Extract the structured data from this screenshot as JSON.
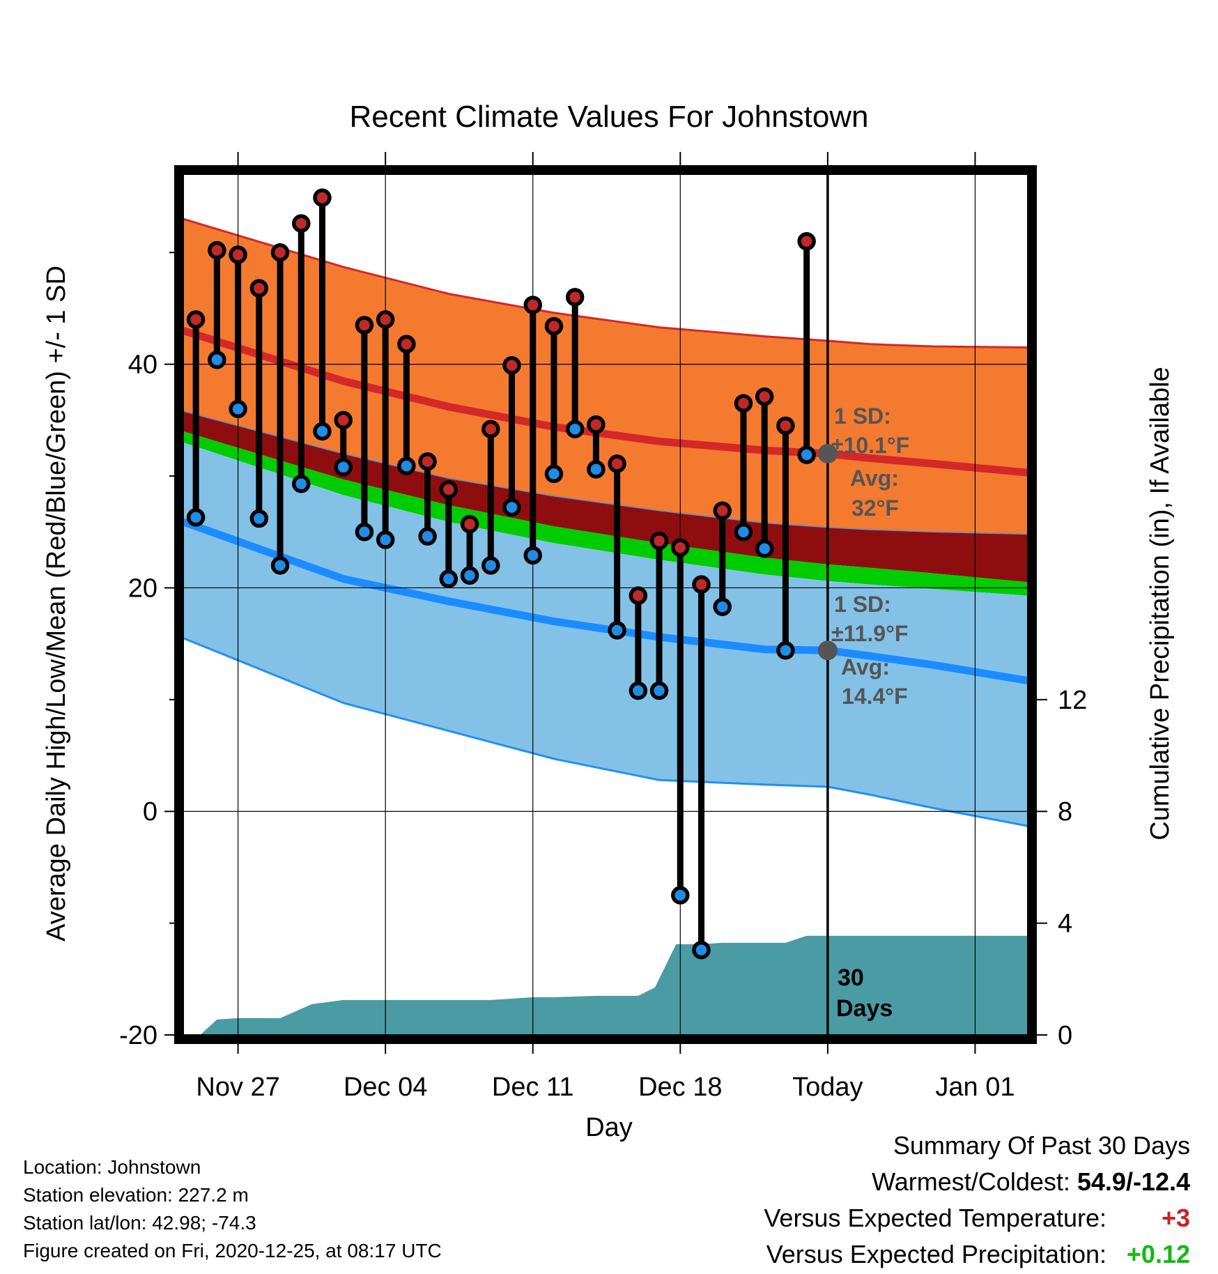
{
  "chart_data": {
    "type": "line",
    "title": "Recent Climate Values For Johnstown",
    "xlabel": "Day",
    "ylabel_left": "Average Daily High/Low/Mean (Red/Blue/Green) +/- 1 SD",
    "ylabel_right": "Cumulative Precipitation (in), If Available",
    "x_ticks": [
      "Nov 27",
      "Dec 04",
      "Dec 11",
      "Dec 18",
      "Today",
      "Jan 01"
    ],
    "x_tick_days": [
      0,
      7,
      14,
      21,
      28,
      35
    ],
    "xlim_days": [
      -2.6,
      37.5
    ],
    "ylim": [
      -20,
      57
    ],
    "y_ticks": [
      -20,
      0,
      20,
      40
    ],
    "y_minor_ticks": [
      -10,
      10,
      30,
      50
    ],
    "precip_ticks": [
      0,
      4,
      8,
      12
    ],
    "precip_lim": [
      0,
      30.8
    ],
    "grid": true,
    "colors": {
      "high_band": "#f47a30",
      "high_line": "#d42828",
      "low_band": "#84c1e7",
      "low_line": "#1a8cff",
      "low_band_edge": "#2090f0",
      "mean_band": "#8e0e10",
      "mean_line": "#00cc00",
      "precip": "#4a9ba3",
      "high_dot": "#c0282a",
      "low_dot": "#1f8ce6",
      "avg_dot": "#555555"
    },
    "normal_days": [
      -2.6,
      5,
      10,
      15,
      20,
      25,
      28,
      30,
      33,
      37.5
    ],
    "normal_high_upper": [
      53.0,
      48.7,
      46.3,
      44.6,
      43.3,
      42.5,
      42.1,
      41.8,
      41.6,
      41.5
    ],
    "normal_high_avg": [
      43.0,
      38.5,
      36.2,
      34.4,
      33.1,
      32.3,
      32.0,
      31.6,
      31.1,
      30.3
    ],
    "normal_mean_upper": [
      35.8,
      32.0,
      29.8,
      28.2,
      26.9,
      25.8,
      25.4,
      25.2,
      25.0,
      24.8
    ],
    "normal_mean_avg": [
      34.0,
      29.7,
      27.4,
      25.5,
      24.0,
      22.7,
      22.1,
      21.8,
      21.3,
      20.5
    ],
    "normal_low_upper": [
      33.0,
      28.3,
      25.9,
      24.0,
      22.5,
      21.2,
      20.6,
      20.3,
      19.9,
      19.3
    ],
    "normal_low_avg": [
      25.9,
      20.8,
      18.8,
      17.0,
      15.6,
      14.5,
      14.4,
      13.9,
      13.1,
      11.7
    ],
    "normal_low_lower": [
      15.5,
      9.7,
      7.2,
      4.7,
      2.8,
      2.4,
      2.2,
      1.5,
      0.3,
      -1.3
    ],
    "days": [
      -2,
      -1,
      0,
      1,
      2,
      3,
      4,
      5,
      6,
      7,
      8,
      9,
      10,
      11,
      12,
      13,
      14,
      15,
      16,
      17,
      18,
      19,
      20,
      21,
      22,
      23,
      24,
      25,
      26,
      27
    ],
    "highs": [
      44.0,
      50.2,
      49.8,
      46.8,
      50.0,
      52.6,
      54.9,
      35.0,
      43.5,
      44.0,
      41.8,
      31.3,
      28.8,
      25.7,
      34.2,
      39.9,
      45.3,
      43.4,
      46.0,
      34.6,
      31.1,
      19.3,
      24.2,
      23.6,
      20.3,
      26.9,
      36.5,
      37.1,
      34.5,
      51.0
    ],
    "lows": [
      26.3,
      40.4,
      36.0,
      26.2,
      22.0,
      29.3,
      34.0,
      30.8,
      25.0,
      24.3,
      30.9,
      24.6,
      20.8,
      21.1,
      22.0,
      27.2,
      22.9,
      30.2,
      34.2,
      30.6,
      16.2,
      10.8,
      10.8,
      -7.5,
      -12.4,
      18.3,
      25.0,
      23.5,
      14.4,
      31.9
    ],
    "precip_days": [
      -2.6,
      -1.8,
      -1,
      0,
      1,
      2,
      2.6,
      3.5,
      5,
      6,
      7,
      10,
      12,
      14,
      15,
      17,
      19,
      19.8,
      20.8,
      21,
      22,
      23,
      25,
      26,
      27,
      28,
      37.5
    ],
    "precip_cum": [
      0,
      0,
      0.55,
      0.6,
      0.6,
      0.6,
      0.8,
      1.1,
      1.25,
      1.25,
      1.25,
      1.25,
      1.25,
      1.35,
      1.35,
      1.4,
      1.4,
      1.7,
      3.25,
      3.25,
      3.25,
      3.3,
      3.3,
      3.3,
      3.55,
      3.55,
      3.55
    ],
    "annotations": {
      "high_sd_line1": "1 SD:",
      "high_sd_line2": "±10.1°F",
      "high_avg_line1": "Avg:",
      "high_avg_line2": "32°F",
      "high_avg_value": 32.0,
      "low_sd_line1": "1 SD:",
      "low_sd_line2": "±11.9°F",
      "low_avg_line1": "Avg:",
      "low_avg_line2": "14.4°F",
      "low_avg_value": 14.4,
      "days_line1": "30",
      "days_line2": "Days"
    }
  },
  "info": {
    "location": "Location: Johnstown",
    "elevation": "Station elevation: 227.2 m",
    "latlon": "Station lat/lon: 42.98; -74.3",
    "created": "Figure created on Fri, 2020-12-25, at 08:17 UTC"
  },
  "summary": {
    "heading": "Summary Of Past 30 Days",
    "warmest_label": "Warmest/Coldest:",
    "warmest_value": "54.9/-12.4",
    "temp_label": "Versus Expected Temperature:",
    "temp_value": "+3",
    "temp_color": "#cc2222",
    "precip_label": "Versus Expected Precipitation:",
    "precip_value": "+0.12",
    "precip_color": "#11bb11"
  }
}
